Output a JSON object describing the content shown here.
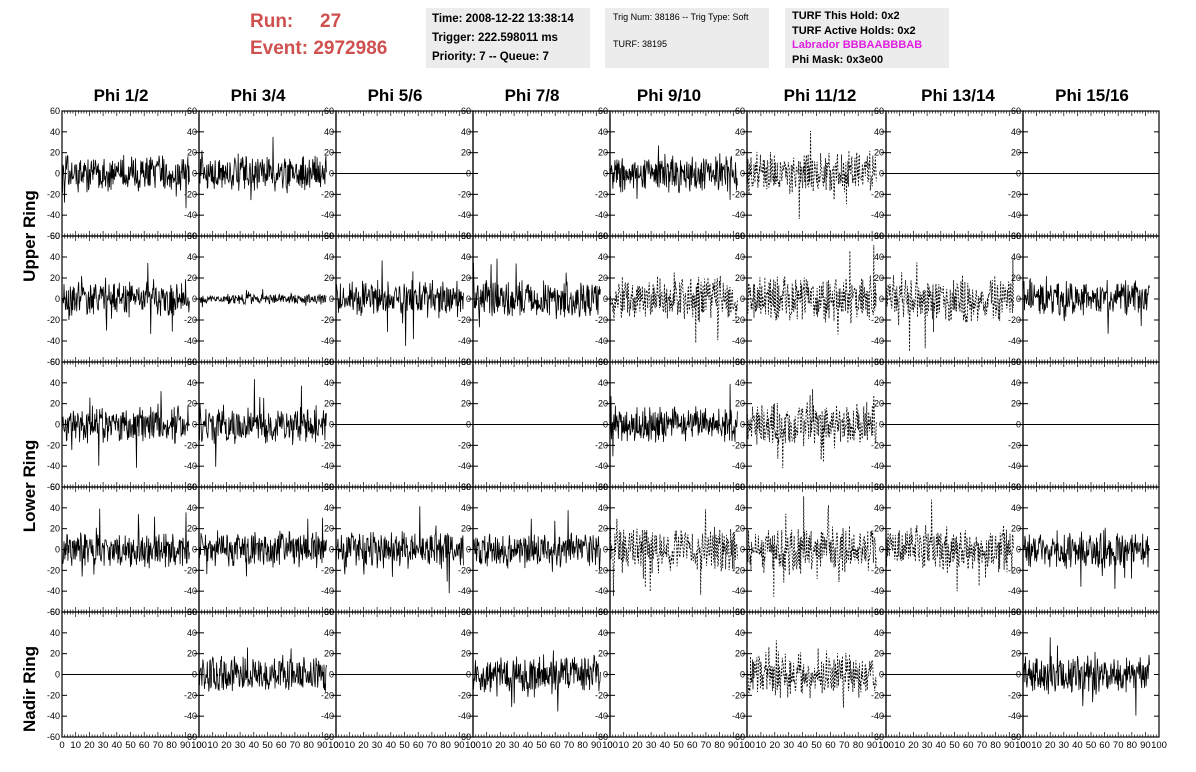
{
  "header": {
    "run_label": "Run:",
    "run_value": "27",
    "event_label": "Event:",
    "event_value": "2972986",
    "time": "Time: 2008-12-22 13:38:14",
    "trigger": "Trigger: 222.598011 ms",
    "priority": "Priority: 7 -- Queue: 7",
    "trig_num": "Trig Num: 38186 -- Trig Type: Soft",
    "turf": "TURF: 38195",
    "turf_this_hold": "TURF This Hold: 0x2",
    "turf_active_holds": "TURF Active Holds: 0x2",
    "labrador": "Labrador BBBAABBBAB",
    "phi_mask": "Phi Mask: 0x3e00"
  },
  "columns": [
    "Phi 1/2",
    "Phi 3/4",
    "Phi 5/6",
    "Phi 7/8",
    "Phi 9/10",
    "Phi 11/12",
    "Phi 13/14",
    "Phi 15/16"
  ],
  "rows": [
    "Upper Ring",
    "Lower Ring",
    "Nadir Ring"
  ],
  "colors": {
    "run_text": "#d05050",
    "labrador_text": "#e020e0",
    "info_bg": "#ececec"
  },
  "chart_data": {
    "type": "line",
    "description_axes": "grid of 5 x 8 waveform panels",
    "ylim": [
      -60,
      60
    ],
    "y_ticks": [
      "60",
      "40",
      "20",
      "0",
      "-20",
      "-40",
      "-60"
    ],
    "xlim": [
      0,
      100
    ],
    "x_tick_labels": [
      "0",
      "10",
      "20",
      "30",
      "40",
      "50",
      "60",
      "70",
      "80",
      "90",
      "100"
    ],
    "panels": [
      [
        "noisy",
        "noisy",
        "flat",
        "blank",
        "noisy",
        "dashed",
        "flat",
        "flat"
      ],
      [
        "noisy",
        "small",
        "noisy",
        "noisy",
        "dashed",
        "dashed",
        "dashed",
        "noisy"
      ],
      [
        "noisy",
        "noisy",
        "flat",
        "flat",
        "noisy",
        "dashed",
        "flat",
        "flat"
      ],
      [
        "noisy",
        "noisy",
        "noisy",
        "noisy",
        "dashed",
        "dashed",
        "dashed",
        "noisy"
      ],
      [
        "flat",
        "noisy",
        "flat",
        "noisy",
        "blank",
        "dashed",
        "flat",
        "noisy"
      ]
    ]
  }
}
